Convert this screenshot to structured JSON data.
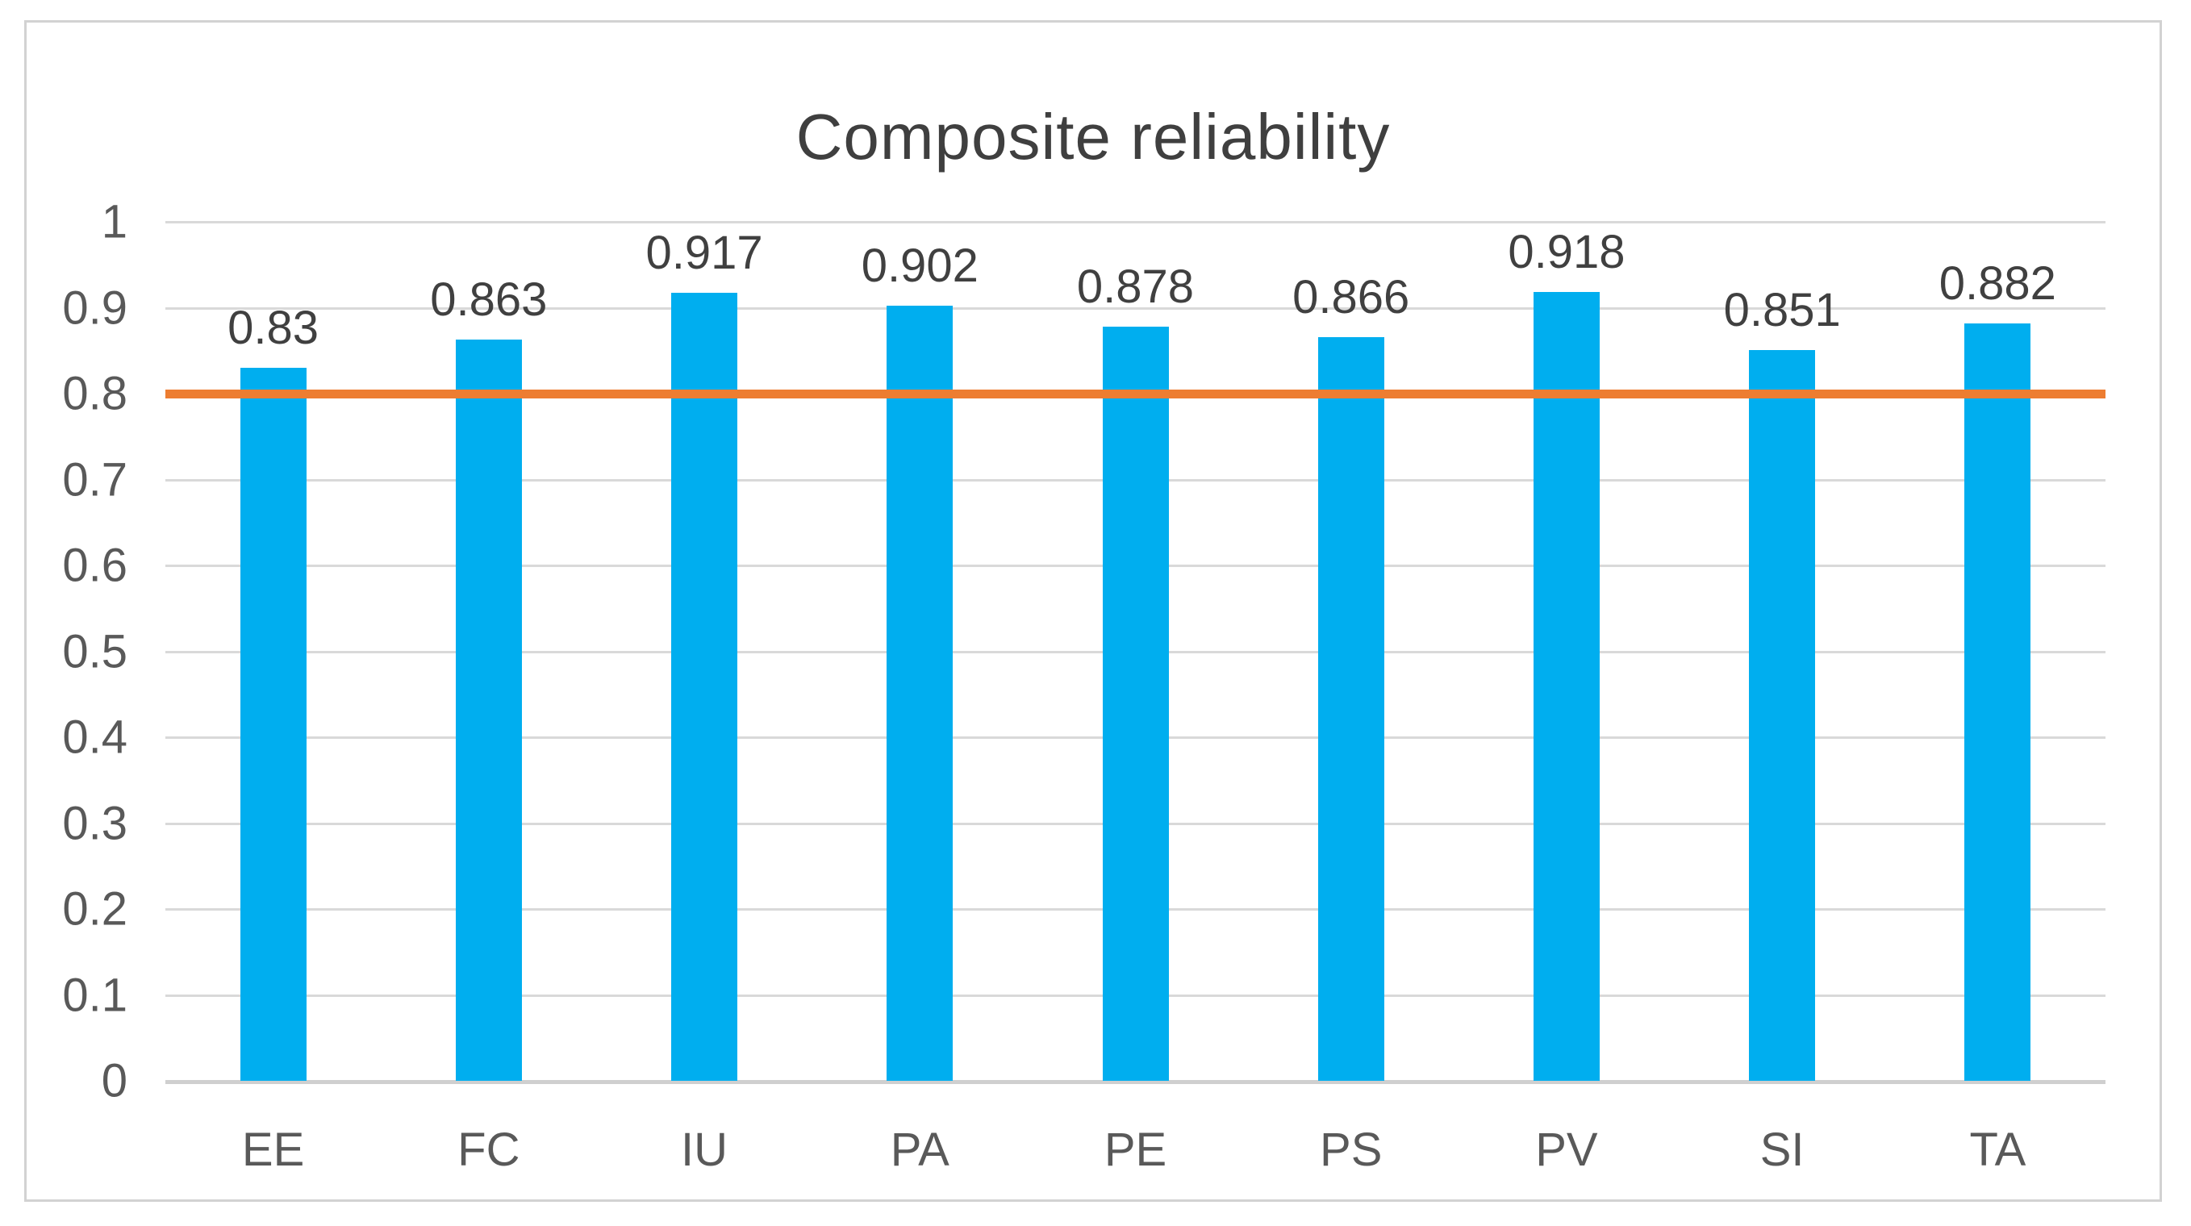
{
  "figure": {
    "background_color": "#ffffff",
    "border_color": "#d2d2d2"
  },
  "chart_data": {
    "type": "bar",
    "title": "Composite reliability",
    "categories": [
      "EE",
      "FC",
      "IU",
      "PA",
      "PE",
      "PS",
      "PV",
      "SI",
      "TA"
    ],
    "values": [
      0.83,
      0.863,
      0.917,
      0.902,
      0.878,
      0.866,
      0.918,
      0.851,
      0.882
    ],
    "value_labels": [
      "0.83",
      "0.863",
      "0.917",
      "0.902",
      "0.878",
      "0.866",
      "0.918",
      "0.851",
      "0.882"
    ],
    "xlabel": "",
    "ylabel": "",
    "ylim": [
      0,
      1
    ],
    "yticks": [
      0,
      0.1,
      0.2,
      0.3,
      0.4,
      0.5,
      0.6,
      0.7,
      0.8,
      0.9,
      1
    ],
    "ytick_labels": [
      "0",
      "0.1",
      "0.2",
      "0.3",
      "0.4",
      "0.5",
      "0.6",
      "0.7",
      "0.8",
      "0.9",
      "1"
    ],
    "grid": true,
    "legend": "none",
    "bar_color": "#00aeef",
    "gridline_color": "#d9d9d9",
    "axis_text_color": "#595959",
    "value_label_color": "#404040",
    "title_color": "#3f3f3f",
    "reference_line": {
      "value": 0.8,
      "color": "#ed7d31"
    }
  }
}
